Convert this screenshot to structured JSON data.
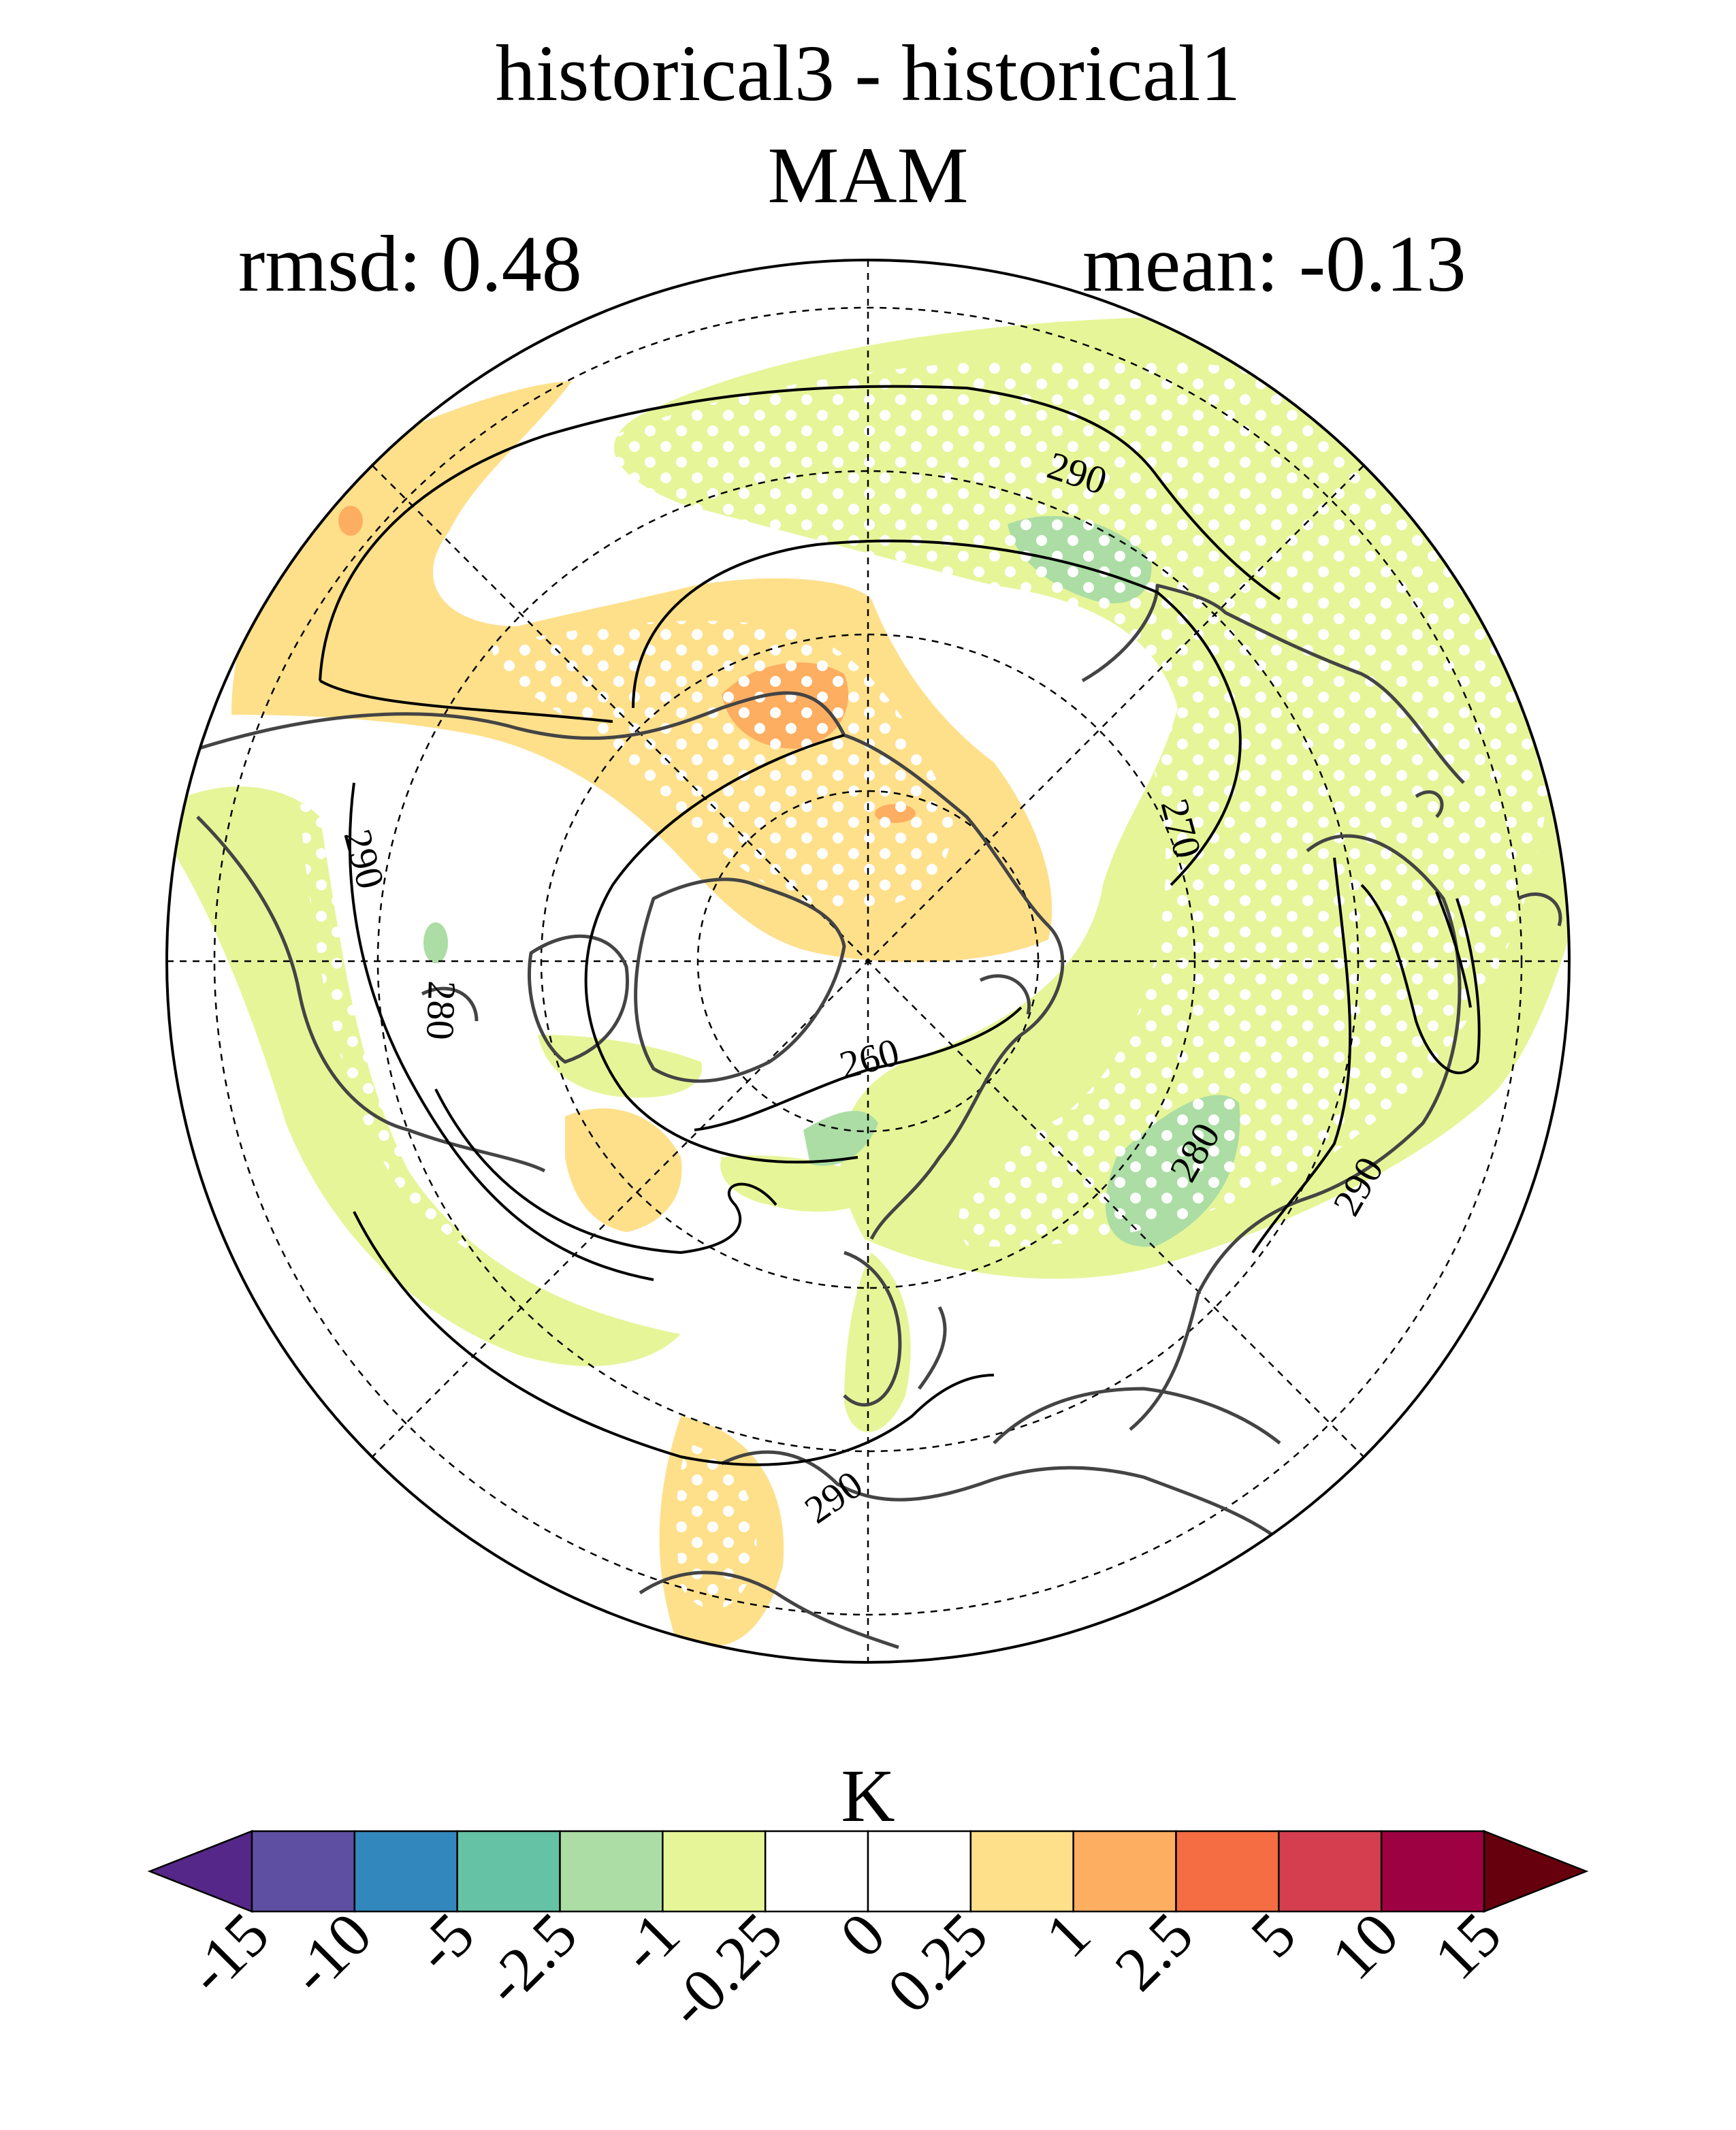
{
  "title": "historical3 - historical1",
  "subtitle": "MAM",
  "stats": {
    "rmsd": "rmsd: 0.48",
    "mean": "mean: -0.13"
  },
  "colorbar": {
    "unit": "K",
    "levels": [
      "-15",
      "-10",
      "-5",
      "-2.5",
      "-1",
      "-0.25",
      "0",
      "0.25",
      "1",
      "2.5",
      "5",
      "10",
      "15"
    ],
    "colors": [
      "#5e4fa2",
      "#3288bd",
      "#66c2a5",
      "#abdda4",
      "#e6f598",
      "#ffffff",
      "#ffffff",
      "#fee08b",
      "#fdae61",
      "#f46d43",
      "#d53e4f",
      "#9e0142"
    ],
    "under_color": "#542788",
    "over_color": "#67000d"
  },
  "contour_labels": [
    "290",
    "290",
    "280",
    "270",
    "260",
    "280",
    "290",
    "290"
  ],
  "map": {
    "projection": "north polar stereographic",
    "colors": {
      "coast": "#444444",
      "contour": "#000000",
      "stipple": "#ffffff"
    }
  }
}
